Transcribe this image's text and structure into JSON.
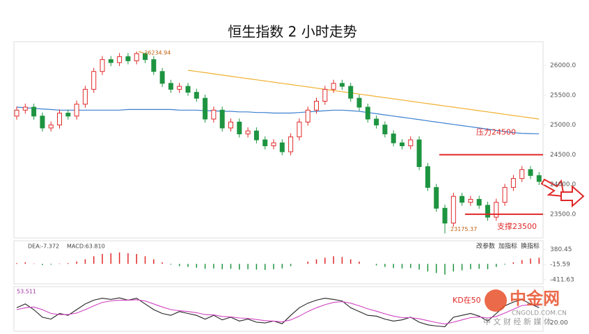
{
  "chart_data": {
    "type": "candlestick",
    "title": "恒生指数 2 小时走势",
    "up_color": "#e02828",
    "down_color": "#1e9440",
    "ylim": [
      23100,
      26400
    ],
    "yticks": [
      {
        "value": 23500,
        "label": "23500.0"
      },
      {
        "value": 24000,
        "label": "24000.0"
      },
      {
        "value": 24500,
        "label": "24500.0"
      },
      {
        "value": 25000,
        "label": "25000.0"
      },
      {
        "value": 25500,
        "label": "25500.0"
      },
      {
        "value": 26000,
        "label": "26000.0"
      }
    ],
    "open": [
      25150,
      25250,
      25300,
      25150,
      24950,
      25000,
      25200,
      25150,
      25350,
      25600,
      25900,
      26100,
      26050,
      26150,
      26080,
      26200,
      26100,
      25900,
      25700,
      25600,
      25650,
      25550,
      25450,
      25100,
      25250,
      24950,
      25050,
      24850,
      24900,
      24750,
      24650,
      24700,
      24550,
      24800,
      25050,
      25250,
      25400,
      25600,
      25700,
      25650,
      25450,
      25300,
      25100,
      25000,
      24850,
      24700,
      24650,
      24750,
      24300,
      23950,
      23600,
      23350,
      23800,
      23700,
      23750,
      23650,
      23450,
      23700,
      23950,
      24100,
      24250,
      24150
    ],
    "high": [
      25310,
      25360,
      25360,
      25210,
      25060,
      25260,
      25260,
      25410,
      25660,
      25960,
      26160,
      26160,
      26210,
      26210,
      26234.94,
      26220,
      26160,
      25960,
      25760,
      25710,
      25710,
      25610,
      25510,
      25310,
      25310,
      25110,
      25110,
      24960,
      24960,
      24810,
      24760,
      24760,
      24860,
      25110,
      25310,
      25460,
      25660,
      25760,
      25760,
      25710,
      25510,
      25360,
      25160,
      25060,
      24910,
      24760,
      24810,
      24810,
      24360,
      24010,
      23660,
      23860,
      23860,
      23810,
      23810,
      23710,
      23760,
      24010,
      24160,
      24310,
      24310,
      24210
    ],
    "low": [
      25090,
      25190,
      25090,
      24890,
      24890,
      24940,
      25090,
      25090,
      25290,
      25540,
      25840,
      25990,
      25990,
      26020,
      26020,
      26040,
      25840,
      25640,
      25540,
      25540,
      25490,
      25390,
      25040,
      25040,
      24890,
      24890,
      24790,
      24790,
      24690,
      24590,
      24590,
      24490,
      24490,
      24740,
      24990,
      25190,
      25340,
      25540,
      25590,
      25390,
      25240,
      25040,
      24940,
      24790,
      24640,
      24590,
      24590,
      24240,
      23890,
      23540,
      23175.37,
      23290,
      23640,
      23640,
      23590,
      23390,
      23390,
      23640,
      23890,
      24040,
      24090,
      23990
    ],
    "close": [
      25250,
      25300,
      25150,
      24950,
      25000,
      25200,
      25150,
      25350,
      25600,
      25900,
      26100,
      26050,
      26150,
      26080,
      26200,
      26100,
      25900,
      25700,
      25600,
      25650,
      25550,
      25450,
      25100,
      25250,
      24950,
      25050,
      24850,
      24900,
      24750,
      24650,
      24700,
      24550,
      24800,
      25050,
      25250,
      25400,
      25600,
      25700,
      25650,
      25450,
      25300,
      25100,
      25000,
      24850,
      24700,
      24650,
      24750,
      24300,
      23950,
      23600,
      23350,
      23800,
      23700,
      23750,
      23650,
      23450,
      23700,
      23950,
      24100,
      24250,
      24150,
      24050
    ],
    "series": [
      {
        "color": "#f0b030",
        "values": [
          null,
          null,
          null,
          null,
          null,
          null,
          null,
          null,
          null,
          null,
          null,
          null,
          null,
          null,
          null,
          null,
          null,
          null,
          null,
          null,
          25920,
          25900,
          25880,
          25860,
          25840,
          25820,
          25800,
          25780,
          25760,
          25740,
          25720,
          25700,
          25680,
          25660,
          25640,
          25620,
          25600,
          25580,
          25560,
          25540,
          25520,
          25500,
          25480,
          25460,
          25440,
          25420,
          25400,
          25380,
          25360,
          25340,
          25320,
          25300,
          25280,
          25260,
          25240,
          25220,
          25200,
          25180,
          25160,
          25140,
          25120,
          25100
        ]
      },
      {
        "color": "#3a7fd0",
        "values": [
          25300,
          25290,
          25280,
          25270,
          25260,
          25250,
          25250,
          25250,
          25250,
          25250,
          25250,
          25250,
          25250,
          25260,
          25260,
          25260,
          25260,
          25260,
          25260,
          25250,
          25250,
          25250,
          25240,
          25240,
          25230,
          25230,
          25220,
          25220,
          25210,
          25210,
          25200,
          25200,
          25200,
          25210,
          25220,
          25230,
          25240,
          25250,
          25250,
          25240,
          25230,
          25210,
          25190,
          25170,
          25150,
          25130,
          25110,
          25090,
          25070,
          25050,
          25030,
          25010,
          24990,
          24970,
          24950,
          24930,
          24910,
          24890,
          24870,
          24860,
          24855,
          24852
        ]
      }
    ],
    "levels": [
      {
        "label": "压力24500",
        "value": 24500,
        "color": "#e02828"
      },
      {
        "label": "支撑23500",
        "value": 23500,
        "color": "#e02828"
      }
    ],
    "macd": {
      "header": [
        "DEA:-7.372",
        "MACD:63.810"
      ],
      "ylim": [
        -525,
        606
      ],
      "yticks": [
        {
          "value": -411.63,
          "label": "-411.63"
        },
        {
          "value": -15.59,
          "label": "-15.59"
        },
        {
          "value": 380.45,
          "label": "380.45"
        }
      ],
      "values": [
        20,
        40,
        10,
        -30,
        -20,
        10,
        20,
        60,
        120,
        200,
        260,
        280,
        300,
        280,
        260,
        200,
        120,
        40,
        -20,
        -60,
        -80,
        -100,
        -130,
        -120,
        -140,
        -130,
        -150,
        -140,
        -150,
        -160,
        -140,
        -120,
        -60,
        0,
        60,
        120,
        160,
        200,
        180,
        120,
        60,
        0,
        -40,
        -80,
        -110,
        -120,
        -110,
        -150,
        -200,
        -240,
        -280,
        -200,
        -170,
        -140,
        -130,
        -140,
        -80,
        -20,
        40,
        100,
        140,
        160
      ]
    },
    "kd": {
      "header": "53.511",
      "note": "KD在50",
      "ylim": [
        0,
        110
      ],
      "yticks": [
        {
          "value": 20,
          "label": "20.00"
        }
      ],
      "series": [
        {
          "color": "#222222",
          "values": [
            60,
            70,
            55,
            35,
            30,
            45,
            40,
            55,
            70,
            80,
            85,
            82,
            86,
            80,
            85,
            70,
            55,
            45,
            40,
            50,
            45,
            40,
            30,
            40,
            28,
            35,
            25,
            30,
            22,
            20,
            25,
            18,
            40,
            60,
            72,
            80,
            85,
            82,
            78,
            60,
            50,
            40,
            38,
            30,
            25,
            28,
            35,
            22,
            15,
            12,
            10,
            35,
            40,
            45,
            38,
            25,
            45,
            65,
            75,
            82,
            70,
            60
          ]
        },
        {
          "color": "#d040c0",
          "values": [
            55,
            60,
            62,
            55,
            45,
            42,
            42,
            46,
            55,
            65,
            74,
            78,
            80,
            80,
            81,
            78,
            70,
            62,
            55,
            52,
            50,
            47,
            42,
            41,
            37,
            36,
            33,
            32,
            29,
            26,
            25,
            23,
            28,
            38,
            50,
            60,
            68,
            74,
            76,
            72,
            65,
            57,
            51,
            44,
            38,
            34,
            34,
            31,
            26,
            21,
            17,
            22,
            28,
            34,
            36,
            33,
            37,
            46,
            56,
            66,
            68,
            66
          ]
        }
      ]
    },
    "toolbar": [
      "改参数",
      "加指标",
      "换指标"
    ],
    "watermark": {
      "name": "中金网",
      "url": "CNGOLD.COM.CN",
      "slogan": "中 文 财 经 新 媒 体"
    }
  }
}
